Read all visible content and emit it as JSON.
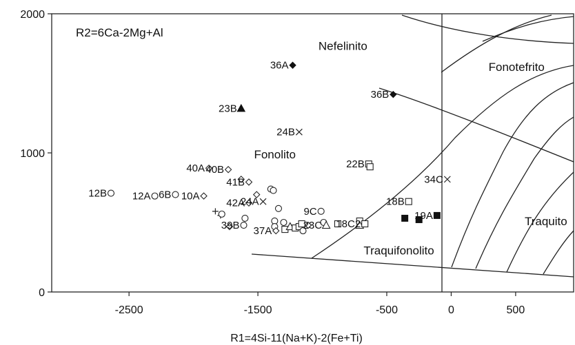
{
  "chart_data": {
    "type": "scatter",
    "title": "R2=6Ca-2Mg+Al",
    "xlabel": "R1=4Si-11(Na+K)-2(Fe+Ti)",
    "ylabel": "",
    "xlim": [
      -3100,
      950
    ],
    "ylim": [
      0,
      2000
    ],
    "x_ticks": [
      "-2500",
      "-1500",
      "-500",
      "0",
      "500"
    ],
    "y_ticks": [
      "0",
      "1000",
      "2000"
    ],
    "grid": false,
    "field_labels": [
      {
        "text": "Nefelinito",
        "x": -1030,
        "y": 1740
      },
      {
        "text": "Fonotefrito",
        "x": 290,
        "y": 1590
      },
      {
        "text": "Fonolito",
        "x": -1530,
        "y": 960
      },
      {
        "text": "Traquito",
        "x": 570,
        "y": 480
      },
      {
        "text": "Traquifonolito",
        "x": -680,
        "y": 270
      }
    ],
    "points": [
      {
        "x": -1230,
        "y": 1630,
        "marker": "diamond-filled",
        "label": "36A"
      },
      {
        "x": -450,
        "y": 1420,
        "marker": "diamond-filled",
        "label": "36B"
      },
      {
        "x": -1630,
        "y": 1320,
        "marker": "triangle-filled",
        "label": "23B"
      },
      {
        "x": -1180,
        "y": 1150,
        "marker": "x",
        "label": "24B"
      },
      {
        "x": -30,
        "y": 810,
        "marker": "x",
        "label": "34C"
      },
      {
        "x": -640,
        "y": 920,
        "marker": "square-open",
        "label": "22B"
      },
      {
        "x": -630,
        "y": 900,
        "marker": "square-open",
        "label": ""
      },
      {
        "x": -1880,
        "y": 890,
        "marker": "diamond-open",
        "label": "40A"
      },
      {
        "x": -1730,
        "y": 880,
        "marker": "diamond-open",
        "label": "40B"
      },
      {
        "x": -1570,
        "y": 790,
        "marker": "diamond-open",
        "label": "41B"
      },
      {
        "x": -1630,
        "y": 810,
        "marker": "diamond-open",
        "label": ""
      },
      {
        "x": -1920,
        "y": 690,
        "marker": "diamond-open",
        "label": "10A"
      },
      {
        "x": -2640,
        "y": 710,
        "marker": "circle-open",
        "label": "12B"
      },
      {
        "x": -2300,
        "y": 690,
        "marker": "circle-open",
        "label": "12A"
      },
      {
        "x": -2140,
        "y": 700,
        "marker": "circle-open",
        "label": "6B"
      },
      {
        "x": -1400,
        "y": 740,
        "marker": "circle-open",
        "label": ""
      },
      {
        "x": -1380,
        "y": 730,
        "marker": "circle-open",
        "label": ""
      },
      {
        "x": -1510,
        "y": 700,
        "marker": "diamond-open",
        "label": ""
      },
      {
        "x": -1570,
        "y": 640,
        "marker": "diamond-open",
        "label": "42A"
      },
      {
        "x": -1460,
        "y": 650,
        "marker": "x",
        "label": "24A"
      },
      {
        "x": -1340,
        "y": 600,
        "marker": "circle-open",
        "label": ""
      },
      {
        "x": -1830,
        "y": 580,
        "marker": "plus",
        "label": ""
      },
      {
        "x": -1790,
        "y": 550,
        "marker": "plus",
        "label": ""
      },
      {
        "x": -1780,
        "y": 560,
        "marker": "circle-open",
        "label": ""
      },
      {
        "x": -1720,
        "y": 470,
        "marker": "diamond-open",
        "label": ""
      },
      {
        "x": -1600,
        "y": 530,
        "marker": "circle-open",
        "label": ""
      },
      {
        "x": -1610,
        "y": 480,
        "marker": "circle-open",
        "label": "39B"
      },
      {
        "x": -1370,
        "y": 510,
        "marker": "circle-open",
        "label": ""
      },
      {
        "x": -1370,
        "y": 470,
        "marker": "circle-open",
        "label": ""
      },
      {
        "x": -1300,
        "y": 500,
        "marker": "circle-open",
        "label": ""
      },
      {
        "x": -1360,
        "y": 440,
        "marker": "diamond-open",
        "label": "37A"
      },
      {
        "x": -1290,
        "y": 450,
        "marker": "square-open",
        "label": ""
      },
      {
        "x": -1250,
        "y": 470,
        "marker": "triangle-open",
        "label": ""
      },
      {
        "x": -1210,
        "y": 460,
        "marker": "square-open",
        "label": ""
      },
      {
        "x": -1180,
        "y": 470,
        "marker": "square-open",
        "label": ""
      },
      {
        "x": -1160,
        "y": 490,
        "marker": "square-open",
        "label": ""
      },
      {
        "x": -1150,
        "y": 440,
        "marker": "circle-open",
        "label": ""
      },
      {
        "x": -1110,
        "y": 480,
        "marker": "diamond-open",
        "label": ""
      },
      {
        "x": -1010,
        "y": 580,
        "marker": "circle-open",
        "label": "9C"
      },
      {
        "x": -990,
        "y": 500,
        "marker": "circle-open",
        "label": ""
      },
      {
        "x": -970,
        "y": 480,
        "marker": "triangle-open",
        "label": "23C"
      },
      {
        "x": -880,
        "y": 490,
        "marker": "square-open",
        "label": ""
      },
      {
        "x": -710,
        "y": 510,
        "marker": "square-open",
        "label": ""
      },
      {
        "x": -710,
        "y": 480,
        "marker": "triangle-open",
        "label": ""
      },
      {
        "x": -670,
        "y": 490,
        "marker": "square-open",
        "label": "18C2"
      },
      {
        "x": -330,
        "y": 650,
        "marker": "square-open",
        "label": "18B"
      },
      {
        "x": -360,
        "y": 530,
        "marker": "square-filled",
        "label": ""
      },
      {
        "x": -250,
        "y": 520,
        "marker": "square-filled",
        "label": ""
      },
      {
        "x": -110,
        "y": 550,
        "marker": "square-filled",
        "label": "19A"
      }
    ]
  }
}
